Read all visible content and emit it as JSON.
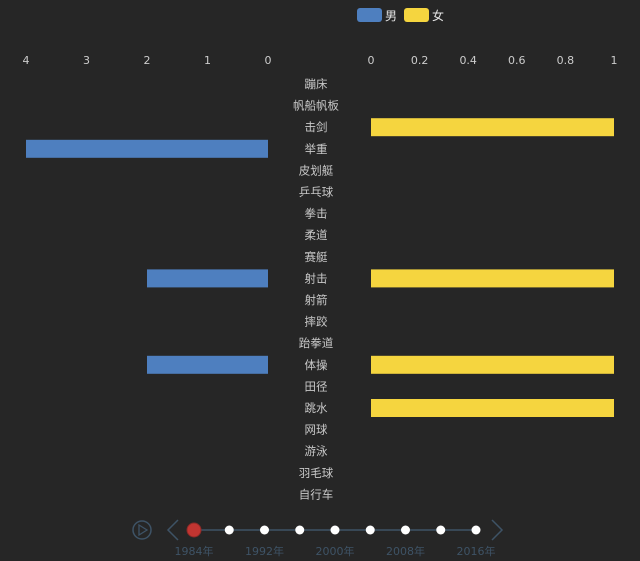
{
  "legend": [
    {
      "name": "男",
      "color": "#4e7fbf"
    },
    {
      "name": "女",
      "color": "#f5d53f"
    }
  ],
  "chart_data": {
    "type": "bar",
    "layout": "butterfly",
    "categories": [
      "蹦床",
      "帆船帆板",
      "击剑",
      "举重",
      "皮划艇",
      "乒乓球",
      "拳击",
      "柔道",
      "赛艇",
      "射击",
      "射箭",
      "摔跤",
      "跆拳道",
      "体操",
      "田径",
      "跳水",
      "网球",
      "游泳",
      "羽毛球",
      "自行车"
    ],
    "series": [
      {
        "name": "男",
        "values": [
          0,
          0,
          0,
          4,
          0,
          0,
          0,
          0,
          0,
          2,
          0,
          0,
          0,
          2,
          0,
          0,
          0,
          0,
          0,
          0
        ],
        "axis_ticks": [
          "4",
          "3",
          "2",
          "1",
          "0"
        ],
        "xlim": [
          0,
          4
        ],
        "direction": "left"
      },
      {
        "name": "女",
        "values": [
          0,
          0,
          1,
          0,
          0,
          0,
          0,
          0,
          0,
          1,
          0,
          0,
          0,
          1,
          0,
          1,
          0,
          0,
          0,
          0
        ],
        "axis_ticks": [
          "0",
          "0.2",
          "0.4",
          "0.6",
          "0.8",
          "1"
        ],
        "xlim": [
          0,
          1
        ],
        "direction": "right"
      }
    ],
    "grid": false,
    "legend_position": "top-right"
  },
  "timeline": {
    "play_icon": "play-icon",
    "prev_icon": "chevron-left-icon",
    "next_icon": "chevron-right-icon",
    "current_index": 0,
    "point_count": 9,
    "labels": [
      "1984年",
      "1992年",
      "2000年",
      "2008年",
      "2016年"
    ],
    "active_color": "#c23531"
  }
}
